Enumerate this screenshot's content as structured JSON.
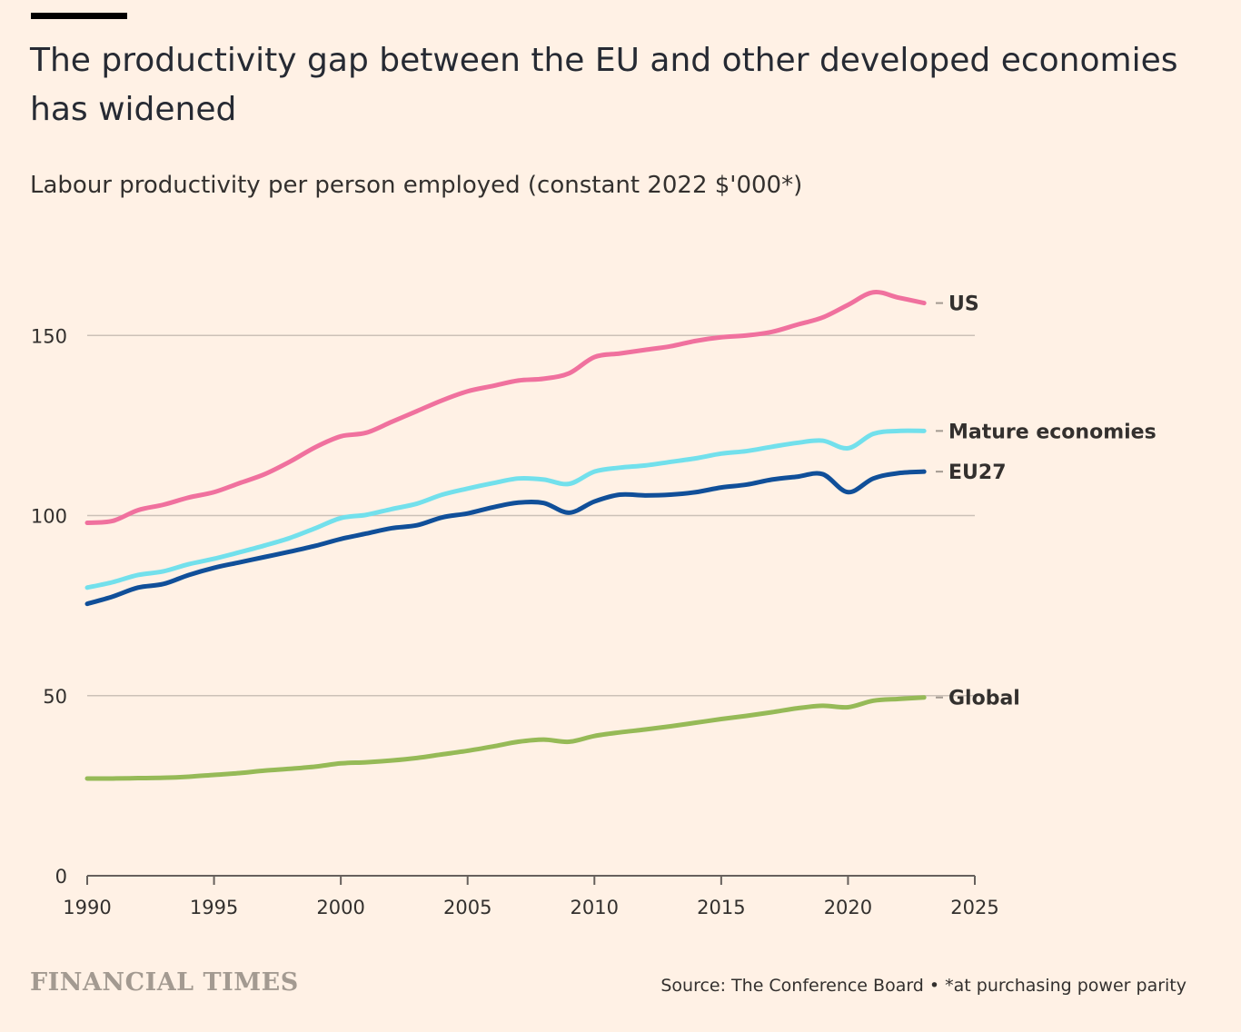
{
  "header": {
    "title": "The productivity gap between the EU and other developed economies has widened",
    "subtitle": "Labour productivity per person employed (constant 2022 $'000*)"
  },
  "footer": {
    "logo_text": "FINANCIAL TIMES",
    "source": "Source: The Conference Board • *at purchasing power parity"
  },
  "chart_data": {
    "type": "line",
    "x": [
      1990,
      1991,
      1992,
      1993,
      1994,
      1995,
      1996,
      1997,
      1998,
      1999,
      2000,
      2001,
      2002,
      2003,
      2004,
      2005,
      2006,
      2007,
      2008,
      2009,
      2010,
      2011,
      2012,
      2013,
      2014,
      2015,
      2016,
      2017,
      2018,
      2019,
      2020,
      2021,
      2022,
      2023
    ],
    "series": [
      {
        "name": "US",
        "color": "#F0719E",
        "values": [
          98,
          98.5,
          101.5,
          103,
          105,
          106.5,
          109,
          111.5,
          115,
          119,
          122,
          123,
          126,
          129,
          132,
          134.5,
          136,
          137.5,
          138,
          139.5,
          144,
          145,
          146,
          147,
          148.5,
          149.5,
          150,
          151,
          153,
          155,
          158.5,
          162,
          160.5,
          159
        ]
      },
      {
        "name": "Mature economies",
        "color": "#72E0EC",
        "values": [
          80,
          81.5,
          83.5,
          84.5,
          86.5,
          88,
          89.8,
          91.7,
          93.8,
          96.5,
          99.3,
          100.2,
          101.8,
          103.3,
          105.8,
          107.5,
          109,
          110.3,
          110,
          108.8,
          112.2,
          113.3,
          113.9,
          114.9,
          115.9,
          117.2,
          117.9,
          119.1,
          120.2,
          120.8,
          118.7,
          122.7,
          123.5,
          123.5
        ]
      },
      {
        "name": "EU27",
        "color": "#104F99",
        "values": [
          75.5,
          77.5,
          80,
          81,
          83.5,
          85.5,
          87,
          88.5,
          90,
          91.6,
          93.5,
          95,
          96.5,
          97.3,
          99.5,
          100.6,
          102.3,
          103.6,
          103.5,
          100.8,
          103.9,
          105.8,
          105.6,
          105.8,
          106.5,
          107.8,
          108.6,
          110,
          110.8,
          111.5,
          106.5,
          110.3,
          111.8,
          112.2
        ]
      },
      {
        "name": "Global",
        "color": "#96BA57",
        "values": [
          27,
          27,
          27.1,
          27.2,
          27.5,
          28,
          28.5,
          29.2,
          29.7,
          30.3,
          31.2,
          31.5,
          32,
          32.7,
          33.7,
          34.7,
          35.9,
          37.2,
          37.8,
          37.2,
          38.8,
          39.8,
          40.6,
          41.5,
          42.5,
          43.5,
          44.4,
          45.4,
          46.5,
          47.2,
          46.8,
          48.6,
          49.1,
          49.5
        ]
      }
    ],
    "ylim": [
      0,
      170
    ],
    "yticks": [
      0,
      50,
      100,
      150
    ],
    "xticks": [
      1990,
      1995,
      2000,
      2005,
      2010,
      2015,
      2020,
      2025
    ],
    "xlim": [
      1990,
      2025
    ],
    "grid": "horizontal",
    "legend": "direct labels at line ends"
  }
}
